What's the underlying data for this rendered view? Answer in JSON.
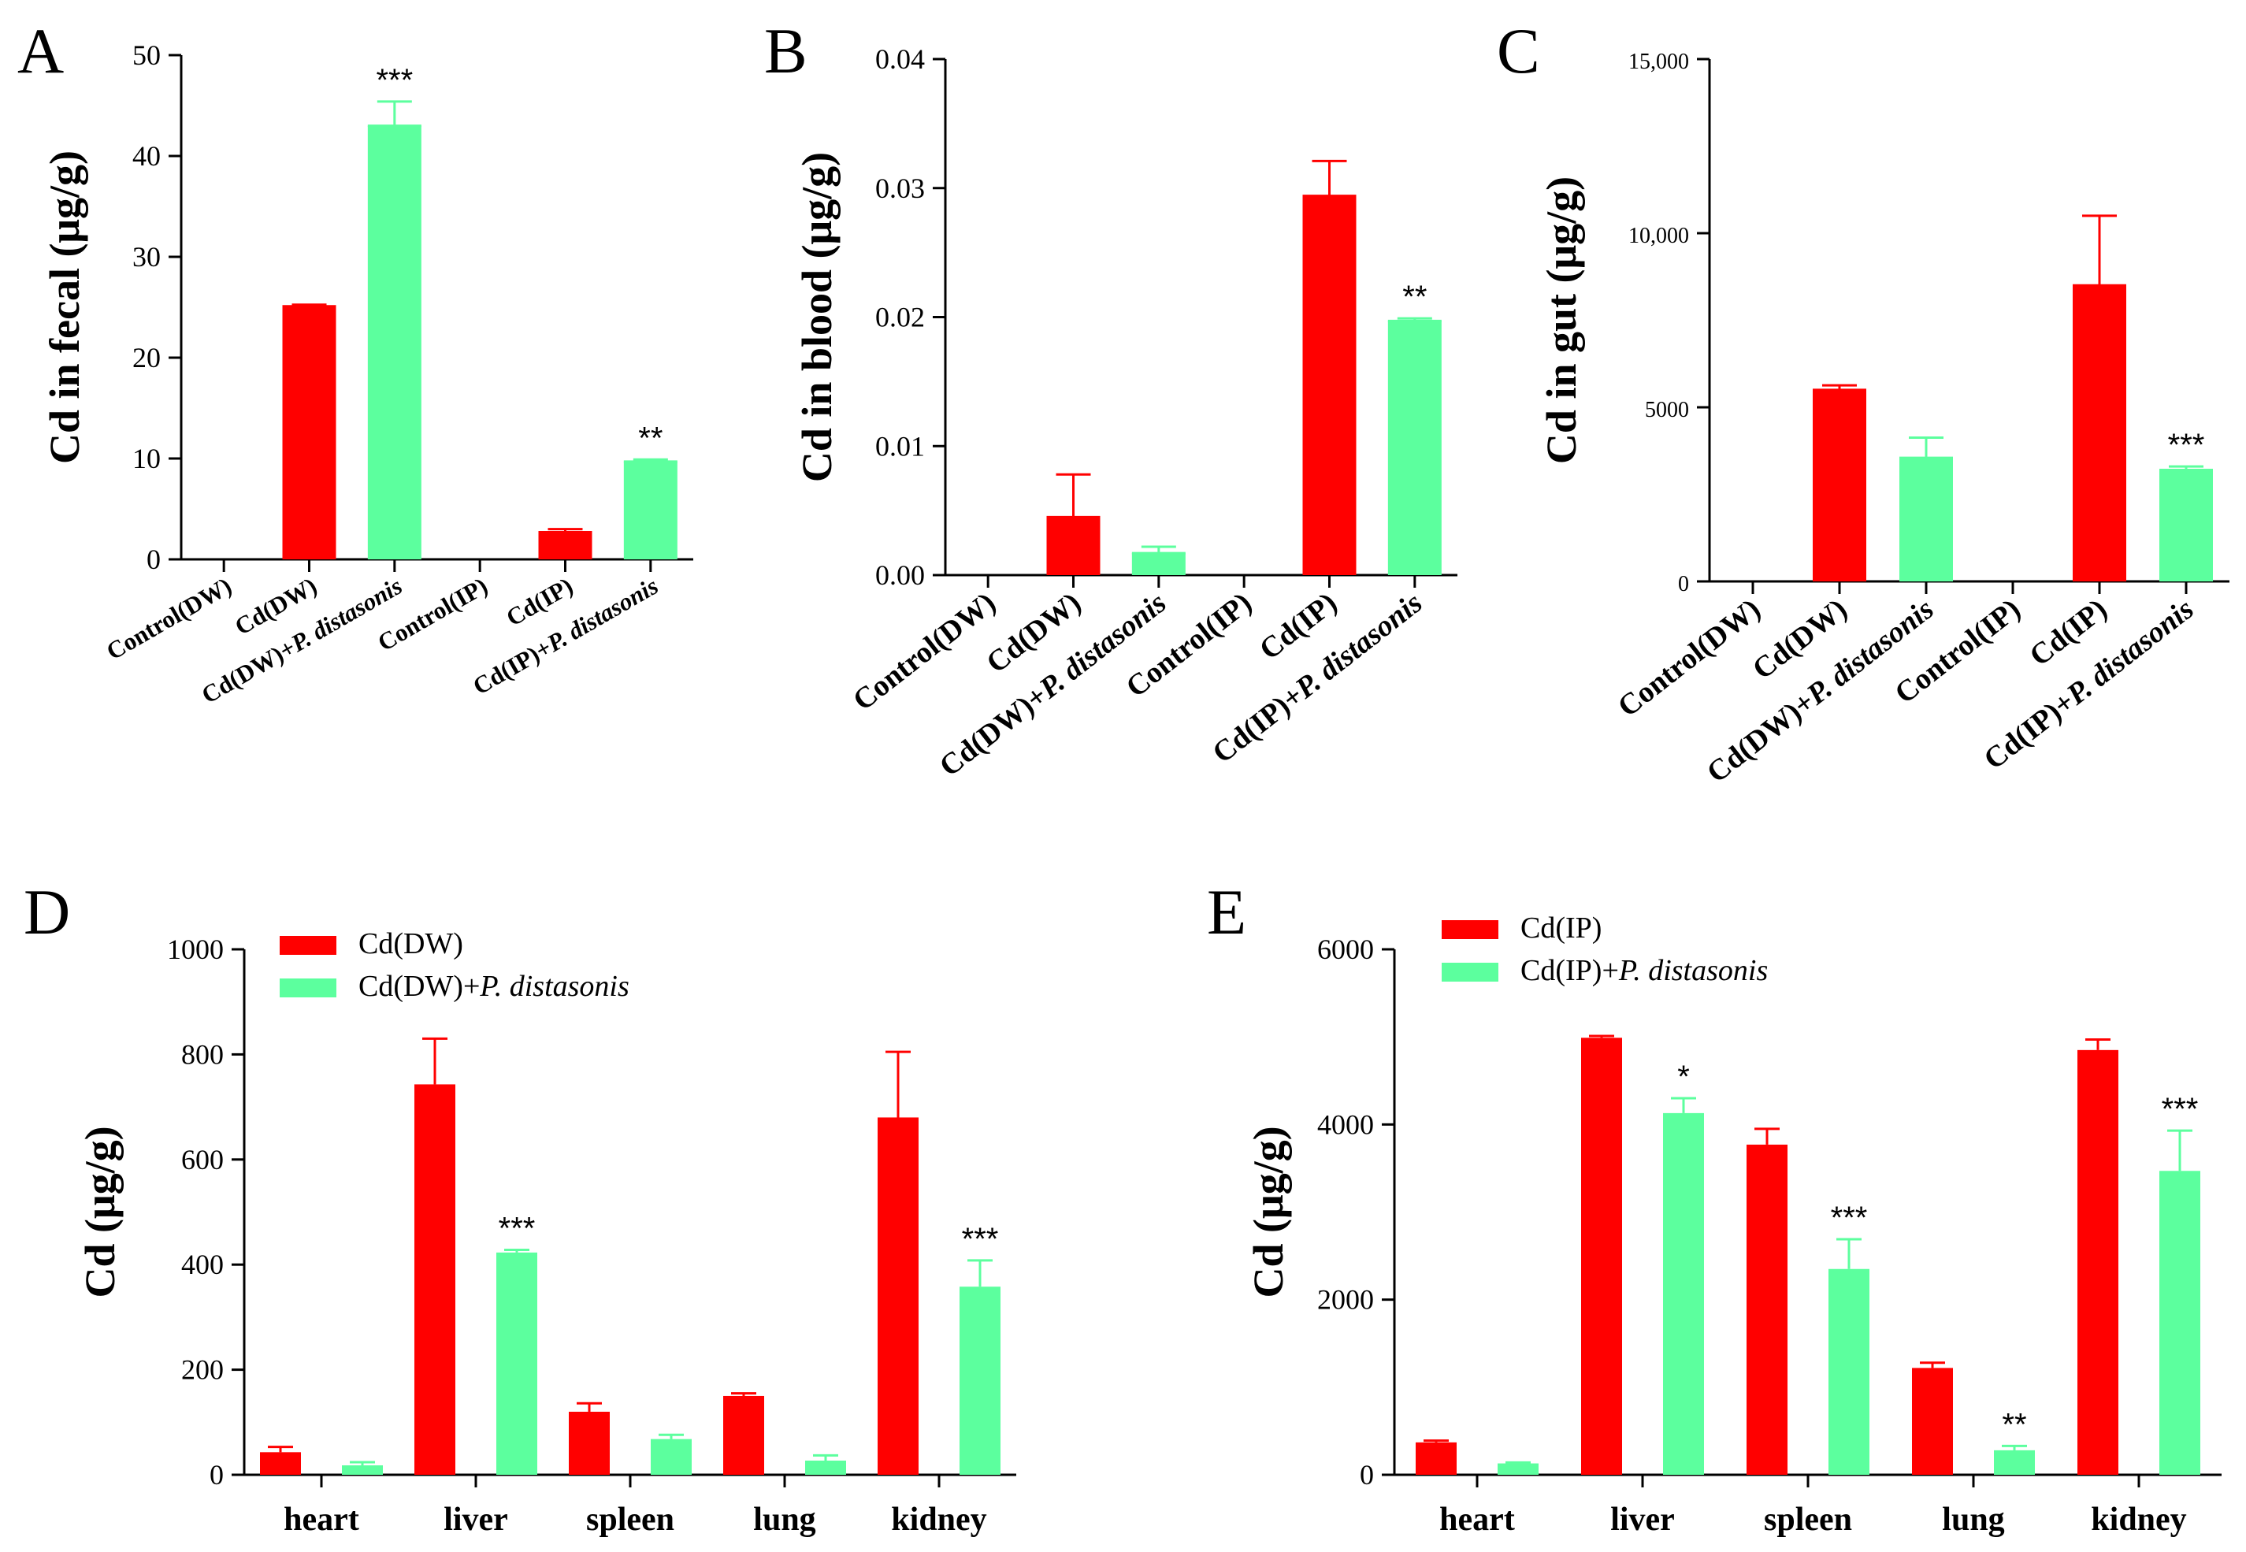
{
  "colors": {
    "red": "#ff0000",
    "green": "#5cff9e",
    "axis": "#000000"
  },
  "chart_data": [
    {
      "id": "A",
      "letter": "A",
      "type": "bar",
      "ylabel": "Cd in fecal (μg/g)",
      "ylim": [
        0,
        50
      ],
      "yticks": [
        0,
        10,
        20,
        30,
        40,
        50
      ],
      "yticklabels": [
        "0",
        "10",
        "20",
        "30",
        "40",
        "50"
      ],
      "categories": [
        {
          "label": "Control(DW)"
        },
        {
          "label": "Cd(DW)"
        },
        {
          "label": "Cd(DW)+",
          "italic": "P. distasonis"
        },
        {
          "label": "Control(IP)"
        },
        {
          "label": "Cd(IP)"
        },
        {
          "label": "Cd(IP)+",
          "italic": "P. distasonis"
        }
      ],
      "values": [
        0,
        25.1,
        43.0,
        0,
        2.7,
        9.7
      ],
      "errors": [
        0,
        0.15,
        2.4,
        0,
        0.3,
        0.2
      ],
      "colors": [
        "red",
        "red",
        "green",
        "red",
        "red",
        "green"
      ],
      "significance": [
        "",
        "",
        "***",
        "",
        "",
        "**"
      ]
    },
    {
      "id": "B",
      "letter": "B",
      "type": "bar",
      "ylabel": "Cd in blood (μg/g)",
      "ylim": [
        0,
        0.04
      ],
      "yticks": [
        0,
        0.01,
        0.02,
        0.03,
        0.04
      ],
      "yticklabels": [
        "0.00",
        "0.01",
        "0.02",
        "0.03",
        "0.04"
      ],
      "categories": [
        {
          "label": "Control(DW)"
        },
        {
          "label": "Cd(DW)"
        },
        {
          "label": "Cd(DW)+",
          "italic": "P. distasonis"
        },
        {
          "label": "Control(IP)"
        },
        {
          "label": "Cd(IP)"
        },
        {
          "label": "Cd(IP)+",
          "italic": "P. distasonis"
        }
      ],
      "values": [
        0,
        0.0045,
        0.0017,
        0,
        0.0294,
        0.0197
      ],
      "errors": [
        0,
        0.0033,
        0.0005,
        0,
        0.0027,
        0.0002
      ],
      "colors": [
        "red",
        "red",
        "green",
        "red",
        "red",
        "green"
      ],
      "significance": [
        "",
        "",
        "",
        "",
        "",
        "**"
      ]
    },
    {
      "id": "C",
      "letter": "C",
      "type": "bar",
      "ylabel": "Cd in gut (μg/g)",
      "ylim": [
        0,
        15000
      ],
      "yticks": [
        0,
        5000,
        10000,
        15000
      ],
      "yticklabels": [
        "0",
        "5000",
        "10,000",
        "15,000"
      ],
      "categories": [
        {
          "label": "Control(DW)"
        },
        {
          "label": "Cd(DW)"
        },
        {
          "label": "Cd(DW)+",
          "italic": "P. distasonis"
        },
        {
          "label": "Control(IP)"
        },
        {
          "label": "Cd(IP)"
        },
        {
          "label": "Cd(IP)+",
          "italic": "P. distasonis"
        }
      ],
      "values": [
        0,
        5500,
        3550,
        0,
        8500,
        3200
      ],
      "errors": [
        0,
        130,
        580,
        0,
        2000,
        100
      ],
      "colors": [
        "red",
        "red",
        "green",
        "red",
        "red",
        "green"
      ],
      "significance": [
        "",
        "",
        "",
        "",
        "",
        "***"
      ]
    },
    {
      "id": "D",
      "letter": "D",
      "type": "bar",
      "ylabel": "Cd (μg/g)",
      "ylim": [
        0,
        1000
      ],
      "yticks": [
        0,
        200,
        400,
        600,
        800,
        1000
      ],
      "yticklabels": [
        "0",
        "200",
        "400",
        "600",
        "800",
        "1000"
      ],
      "categories": [
        "heart",
        "liver",
        "spleen",
        "lung",
        "kidney"
      ],
      "legend": [
        {
          "label": "Cd(DW)",
          "color": "red"
        },
        {
          "label": "Cd(DW)+",
          "italic": "P. distasonis",
          "color": "green"
        }
      ],
      "series": [
        {
          "name": "Cd(DW)",
          "values": [
            43,
            743,
            120,
            150,
            680
          ],
          "errors": [
            10,
            87,
            16,
            5,
            125
          ],
          "color": "red",
          "significance": [
            "",
            "",
            "",
            "",
            ""
          ]
        },
        {
          "name": "Cd(DW)+P. distasonis",
          "values": [
            18,
            423,
            68,
            27,
            358
          ],
          "errors": [
            6,
            5,
            8,
            10,
            50
          ],
          "color": "green",
          "significance": [
            "",
            "***",
            "",
            "",
            "***"
          ]
        }
      ]
    },
    {
      "id": "E",
      "letter": "E",
      "type": "bar",
      "ylabel": "Cd (μg/g)",
      "ylim": [
        0,
        6000
      ],
      "yticks": [
        0,
        2000,
        4000,
        6000
      ],
      "yticklabels": [
        "0",
        "2000",
        "4000",
        "6000"
      ],
      "categories": [
        "heart",
        "liver",
        "spleen",
        "lung",
        "kidney"
      ],
      "legend": [
        {
          "label": "Cd(IP)",
          "color": "red"
        },
        {
          "label": "Cd(IP)+",
          "italic": "P. distasonis",
          "color": "green"
        }
      ],
      "series": [
        {
          "name": "Cd(IP)",
          "values": [
            370,
            4990,
            3770,
            1220,
            4850
          ],
          "errors": [
            20,
            20,
            180,
            60,
            120
          ],
          "color": "red",
          "significance": [
            "",
            "",
            "",
            "",
            ""
          ]
        },
        {
          "name": "Cd(IP)+P. distasonis",
          "values": [
            130,
            4130,
            2350,
            280,
            3470
          ],
          "errors": [
            10,
            170,
            340,
            50,
            460
          ],
          "color": "green",
          "significance": [
            "",
            "*",
            "***",
            "**",
            "***"
          ]
        }
      ]
    }
  ]
}
